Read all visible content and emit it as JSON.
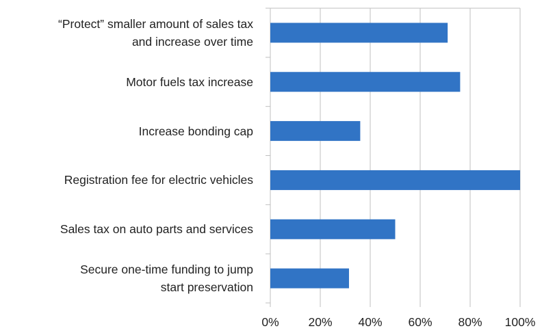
{
  "chart_data": {
    "type": "barh",
    "categories": [
      "“Protect” smaller amount of sales tax\nand increase over time",
      "Motor fuels tax increase",
      "Increase bonding cap",
      "Registration fee for electric vehicles",
      "Sales tax on auto parts and services",
      "Secure one-time funding to jump\nstart preservation"
    ],
    "values": [
      71,
      76,
      36,
      100,
      50,
      31.5
    ],
    "color": "#3174c5",
    "xlim": [
      0,
      100
    ],
    "xticks": [
      {
        "value": 0,
        "label": "0%"
      },
      {
        "value": 20,
        "label": "20%"
      },
      {
        "value": 40,
        "label": "40%"
      },
      {
        "value": 60,
        "label": "60%"
      },
      {
        "value": 80,
        "label": "80%"
      },
      {
        "value": 100,
        "label": "100%"
      }
    ],
    "grid": true
  }
}
